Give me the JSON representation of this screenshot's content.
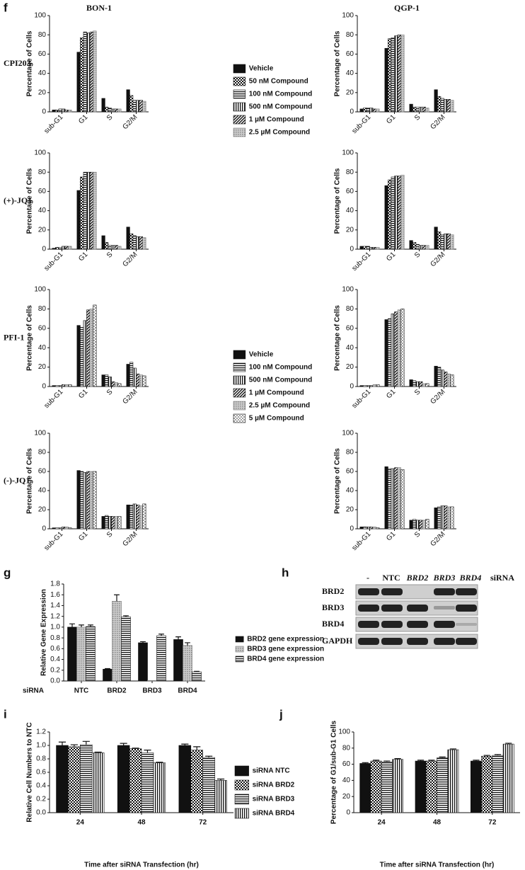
{
  "chart_data": [
    {
      "type": "bar",
      "panel": "f",
      "title": "BON-1",
      "row_label": "CPI203",
      "y_label": "Percentage of Cells",
      "xtick_rotation": 45,
      "categories": [
        "sub-G1",
        "G1",
        "S",
        "G2/M"
      ],
      "ylim": [
        0,
        100
      ],
      "yticks": [
        0,
        20,
        40,
        60,
        80,
        100
      ],
      "series": [
        {
          "name": "Vehicle",
          "pattern": "solid",
          "color": "#111111",
          "values": [
            2,
            62,
            14,
            23
          ]
        },
        {
          "name": "50 nM Compound",
          "pattern": "checker",
          "color": "#111111",
          "values": [
            2,
            77,
            5,
            17
          ]
        },
        {
          "name": "100 nM Compound",
          "pattern": "hlines",
          "color": "#111111",
          "values": [
            3,
            83,
            4,
            12
          ]
        },
        {
          "name": "500 nM Compound",
          "pattern": "vlines",
          "color": "#111111",
          "values": [
            3,
            82,
            3,
            12
          ]
        },
        {
          "name": "1 µM Compound",
          "pattern": "diag",
          "color": "#111111",
          "values": [
            2,
            83,
            3,
            12
          ]
        },
        {
          "name": "2.5 µM Compound",
          "pattern": "dots",
          "color": "#777777",
          "values": [
            2,
            84,
            3,
            11
          ]
        }
      ]
    },
    {
      "type": "bar",
      "title": "QGP-1",
      "y_label": "Percentage of Cells",
      "xtick_rotation": 45,
      "categories": [
        "sub-G1",
        "G1",
        "S",
        "G2/M"
      ],
      "ylim": [
        0,
        100
      ],
      "yticks": [
        0,
        20,
        40,
        60,
        80,
        100
      ],
      "series": [
        {
          "pattern": "solid",
          "color": "#111111",
          "values": [
            3,
            66,
            8,
            23
          ]
        },
        {
          "pattern": "checker",
          "color": "#111111",
          "values": [
            4,
            76,
            5,
            16
          ]
        },
        {
          "pattern": "hlines",
          "color": "#111111",
          "values": [
            4,
            77,
            5,
            14
          ]
        },
        {
          "pattern": "vlines",
          "color": "#111111",
          "values": [
            4,
            79,
            5,
            13
          ]
        },
        {
          "pattern": "diag",
          "color": "#111111",
          "values": [
            3,
            80,
            5,
            13
          ]
        },
        {
          "pattern": "dots",
          "color": "#777777",
          "values": [
            3,
            80,
            4,
            12
          ]
        }
      ]
    },
    {
      "type": "bar",
      "row_label": "(+)-JQ1",
      "y_label": "Percentage of Cells",
      "xtick_rotation": 45,
      "categories": [
        "sub-G1",
        "G1",
        "S",
        "G2/M"
      ],
      "ylim": [
        0,
        100
      ],
      "yticks": [
        0,
        20,
        40,
        60,
        80,
        100
      ],
      "series": [
        {
          "pattern": "solid",
          "color": "#111111",
          "values": [
            1,
            61,
            14,
            23
          ]
        },
        {
          "pattern": "checker",
          "color": "#111111",
          "values": [
            2,
            75,
            7,
            16
          ]
        },
        {
          "pattern": "hlines",
          "color": "#111111",
          "values": [
            2,
            80,
            4,
            14
          ]
        },
        {
          "pattern": "vlines",
          "color": "#111111",
          "values": [
            3,
            80,
            4,
            13
          ]
        },
        {
          "pattern": "diag",
          "color": "#111111",
          "values": [
            3,
            80,
            4,
            13
          ]
        },
        {
          "pattern": "dots",
          "color": "#777777",
          "values": [
            3,
            80,
            3,
            12
          ]
        }
      ]
    },
    {
      "type": "bar",
      "y_label": "Percentage of Cells",
      "xtick_rotation": 45,
      "categories": [
        "sub-G1",
        "G1",
        "S",
        "G2/M"
      ],
      "ylim": [
        0,
        100
      ],
      "yticks": [
        0,
        20,
        40,
        60,
        80,
        100
      ],
      "series": [
        {
          "pattern": "solid",
          "color": "#111111",
          "values": [
            3,
            66,
            9,
            23
          ]
        },
        {
          "pattern": "checker",
          "color": "#111111",
          "values": [
            3,
            72,
            7,
            18
          ]
        },
        {
          "pattern": "hlines",
          "color": "#111111",
          "values": [
            3,
            75,
            5,
            15
          ]
        },
        {
          "pattern": "vlines",
          "color": "#111111",
          "values": [
            2,
            76,
            4,
            16
          ]
        },
        {
          "pattern": "diag",
          "color": "#111111",
          "values": [
            2,
            76,
            4,
            16
          ]
        },
        {
          "pattern": "dots",
          "color": "#777777",
          "values": [
            2,
            77,
            4,
            15
          ]
        }
      ]
    },
    {
      "type": "bar",
      "row_label": "PFI-1",
      "y_label": "Percentage of Cells",
      "xtick_rotation": 45,
      "categories": [
        "sub-G1",
        "G1",
        "S",
        "G2/M"
      ],
      "ylim": [
        0,
        100
      ],
      "yticks": [
        0,
        20,
        40,
        60,
        80,
        100
      ],
      "series": [
        {
          "name": "Vehicle",
          "pattern": "solid",
          "color": "#111111",
          "values": [
            1,
            63,
            12,
            23
          ]
        },
        {
          "name": "100 nM Compound",
          "pattern": "hlines",
          "color": "#111111",
          "values": [
            1,
            61,
            12,
            25
          ]
        },
        {
          "name": "500 nM Compound",
          "pattern": "vlines",
          "color": "#111111",
          "values": [
            1,
            68,
            10,
            19
          ]
        },
        {
          "name": "1 µM Compound",
          "pattern": "diag",
          "color": "#111111",
          "values": [
            2,
            79,
            5,
            13
          ]
        },
        {
          "name": "2.5 µM Compound",
          "pattern": "dots",
          "color": "#777777",
          "values": [
            2,
            80,
            4,
            12
          ]
        },
        {
          "name": "5 µM Compound",
          "pattern": "wdots",
          "color": "#111111",
          "values": [
            2,
            84,
            3,
            11
          ]
        }
      ]
    },
    {
      "type": "bar",
      "y_label": "Percentage of Cells",
      "xtick_rotation": 45,
      "categories": [
        "sub-G1",
        "G1",
        "S",
        "G2/M"
      ],
      "ylim": [
        0,
        100
      ],
      "yticks": [
        0,
        20,
        40,
        60,
        80,
        100
      ],
      "series": [
        {
          "pattern": "solid",
          "color": "#111111",
          "values": [
            1,
            69,
            7,
            21
          ]
        },
        {
          "pattern": "hlines",
          "color": "#111111",
          "values": [
            1,
            70,
            6,
            20
          ]
        },
        {
          "pattern": "vlines",
          "color": "#111111",
          "values": [
            1,
            75,
            5,
            17
          ]
        },
        {
          "pattern": "diag",
          "color": "#111111",
          "values": [
            1,
            77,
            5,
            15
          ]
        },
        {
          "pattern": "dots",
          "color": "#777777",
          "values": [
            2,
            79,
            3,
            13
          ]
        },
        {
          "pattern": "wdots",
          "color": "#111111",
          "values": [
            2,
            80,
            3,
            12
          ]
        }
      ]
    },
    {
      "type": "bar",
      "row_label": "(-)-JQ1",
      "y_label": "Percentage of Cells",
      "xtick_rotation": 45,
      "categories": [
        "sub-G1",
        "G1",
        "S",
        "G2/M"
      ],
      "ylim": [
        0,
        100
      ],
      "yticks": [
        0,
        20,
        40,
        60,
        80,
        100
      ],
      "series": [
        {
          "pattern": "solid",
          "color": "#111111",
          "values": [
            1,
            61,
            13,
            25
          ]
        },
        {
          "pattern": "hlines",
          "color": "#111111",
          "values": [
            1,
            60,
            14,
            25
          ]
        },
        {
          "pattern": "vlines",
          "color": "#111111",
          "values": [
            1,
            59,
            13,
            26
          ]
        },
        {
          "pattern": "diag",
          "color": "#111111",
          "values": [
            2,
            60,
            13,
            25
          ]
        },
        {
          "pattern": "dots",
          "color": "#777777",
          "values": [
            2,
            60,
            13,
            24
          ]
        },
        {
          "pattern": "wdots",
          "color": "#111111",
          "values": [
            1,
            60,
            13,
            26
          ]
        }
      ]
    },
    {
      "type": "bar",
      "y_label": "Percentage of Cells",
      "xtick_rotation": 45,
      "categories": [
        "sub-G1",
        "G1",
        "S",
        "G2/M"
      ],
      "ylim": [
        0,
        100
      ],
      "yticks": [
        0,
        20,
        40,
        60,
        80,
        100
      ],
      "series": [
        {
          "pattern": "solid",
          "color": "#111111",
          "values": [
            2,
            65,
            9,
            22
          ]
        },
        {
          "pattern": "hlines",
          "color": "#111111",
          "values": [
            2,
            63,
            10,
            23
          ]
        },
        {
          "pattern": "vlines",
          "color": "#111111",
          "values": [
            2,
            63,
            9,
            24
          ]
        },
        {
          "pattern": "diag",
          "color": "#111111",
          "values": [
            2,
            64,
            9,
            24
          ]
        },
        {
          "pattern": "dots",
          "color": "#777777",
          "values": [
            2,
            64,
            9,
            23
          ]
        },
        {
          "pattern": "wdots",
          "color": "#111111",
          "values": [
            1,
            62,
            10,
            23
          ]
        }
      ]
    },
    {
      "type": "bar",
      "panel": "g",
      "y_label": "Relative Gene Expression",
      "x_prefix": "siRNA",
      "categories": [
        "NTC",
        "BRD2",
        "BRD3",
        "BRD4"
      ],
      "ylim": [
        0,
        1.8
      ],
      "yticks": [
        {
          "value": 0,
          "label": "0.0"
        },
        0.2,
        0.4,
        0.6,
        0.8,
        {
          "value": 1,
          "label": "1.0"
        },
        1.2,
        1.4,
        1.6,
        1.8
      ],
      "series": [
        {
          "name": "BRD2 gene expression",
          "pattern": "solid",
          "color": "#111111",
          "values": [
            1.0,
            0.22,
            0.71,
            0.77
          ],
          "errors": [
            0.06,
            0.01,
            0.02,
            0.05
          ]
        },
        {
          "name": "BRD3 gene expression",
          "pattern": "dots",
          "color": "#777777",
          "values": [
            1.0,
            1.48,
            0.01,
            0.66
          ],
          "errors": [
            0.04,
            0.12,
            null,
            0.05
          ]
        },
        {
          "name": "BRD4 gene expression",
          "pattern": "hlines",
          "color": "#111111",
          "values": [
            1.01,
            1.19,
            0.84,
            0.17
          ],
          "errors": [
            0.03,
            0.02,
            0.03,
            0.01
          ]
        }
      ]
    },
    {
      "type": "bar",
      "panel": "i",
      "y_label": "Relative Cell Numbers to NTC",
      "x_label": "Time after siRNA Transfection (hr)",
      "categories": [
        "24",
        "48",
        "72"
      ],
      "ylim": [
        0,
        1.2
      ],
      "yticks": [
        {
          "value": 0,
          "label": "0.0"
        },
        0.2,
        0.4,
        0.6,
        0.8,
        {
          "value": 1,
          "label": "1.0"
        },
        1.2
      ],
      "series": [
        {
          "name": "siRNA NTC",
          "pattern": "solid",
          "color": "#111111",
          "values": [
            1.0,
            1.0,
            1.0
          ],
          "errors": [
            0.05,
            0.03,
            0.02
          ]
        },
        {
          "name": "siRNA BRD2",
          "pattern": "checker",
          "color": "#111111",
          "values": [
            0.98,
            0.95,
            0.93
          ],
          "errors": [
            0.03,
            0.01,
            0.05
          ]
        },
        {
          "name": "siRNA BRD3",
          "pattern": "hlines",
          "color": "#111111",
          "values": [
            1.01,
            0.89,
            0.82
          ],
          "errors": [
            0.05,
            0.04,
            0.02
          ]
        },
        {
          "name": "siRNA BRD4",
          "pattern": "vlines",
          "color": "#111111",
          "values": [
            0.89,
            0.74,
            0.48
          ],
          "errors": [
            0.01,
            0.01,
            0.02
          ]
        }
      ]
    },
    {
      "type": "bar",
      "panel": "j",
      "y_label": "Percentage of G1/sub-G1 Cells",
      "x_label": "Time after siRNA Transfection (hr)",
      "categories": [
        "24",
        "48",
        "72"
      ],
      "ylim": [
        0,
        100
      ],
      "yticks": [
        0,
        20,
        40,
        60,
        80,
        100
      ],
      "series": [
        {
          "pattern": "solid",
          "color": "#111111",
          "values": [
            61,
            64,
            64
          ],
          "errors": [
            1,
            1,
            1
          ]
        },
        {
          "pattern": "checker",
          "color": "#111111",
          "values": [
            64,
            64,
            70
          ],
          "errors": [
            1,
            1,
            1
          ]
        },
        {
          "pattern": "hlines",
          "color": "#111111",
          "values": [
            63,
            68,
            71
          ],
          "errors": [
            1,
            1,
            1
          ]
        },
        {
          "pattern": "vlines",
          "color": "#111111",
          "values": [
            66,
            78,
            85
          ],
          "errors": [
            1,
            1,
            1
          ]
        }
      ]
    }
  ],
  "blot": {
    "panel": "h",
    "columns": [
      "-",
      "NTC",
      "BRD2",
      "BRD3",
      "BRD4",
      "siRNA"
    ],
    "rows": [
      "BRD2",
      "BRD3",
      "BRD4",
      "GAPDH"
    ]
  }
}
